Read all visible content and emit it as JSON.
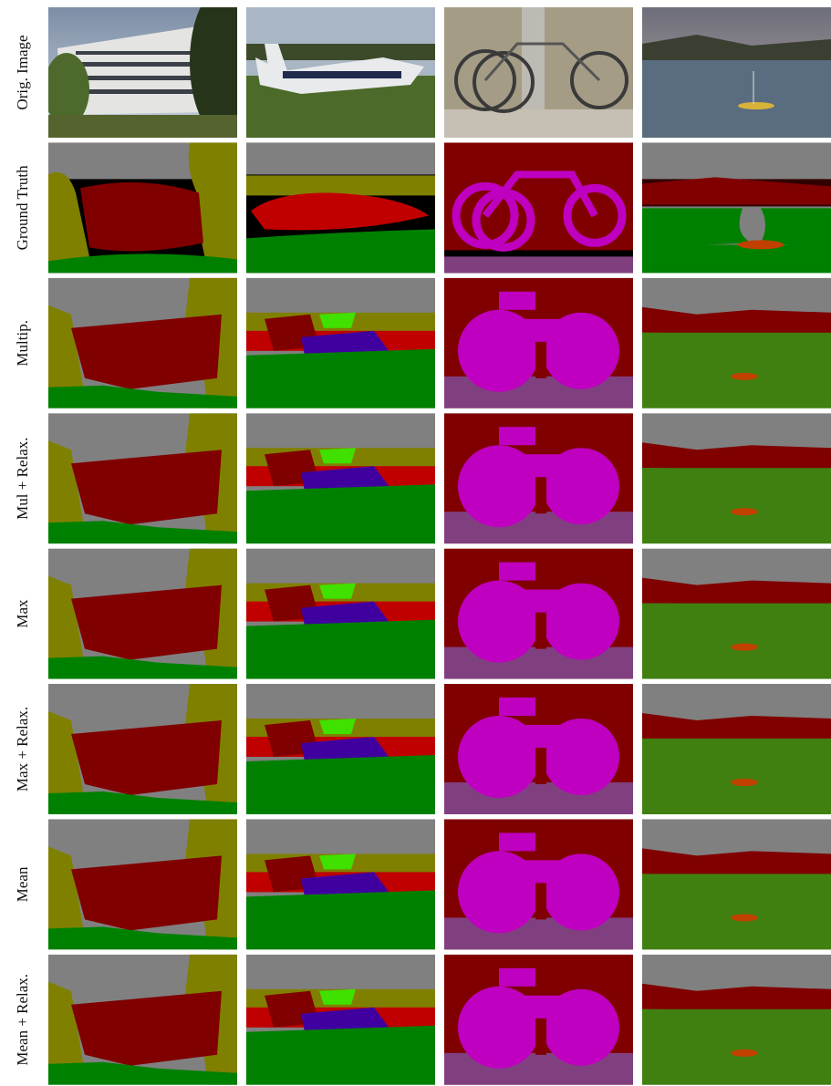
{
  "row_labels": [
    "Orig. Image",
    "Ground Truth",
    "Multip.",
    "Mul + Relax.",
    "Max",
    "Max + Relax.",
    "Mean",
    "Mean + Relax."
  ]
}
